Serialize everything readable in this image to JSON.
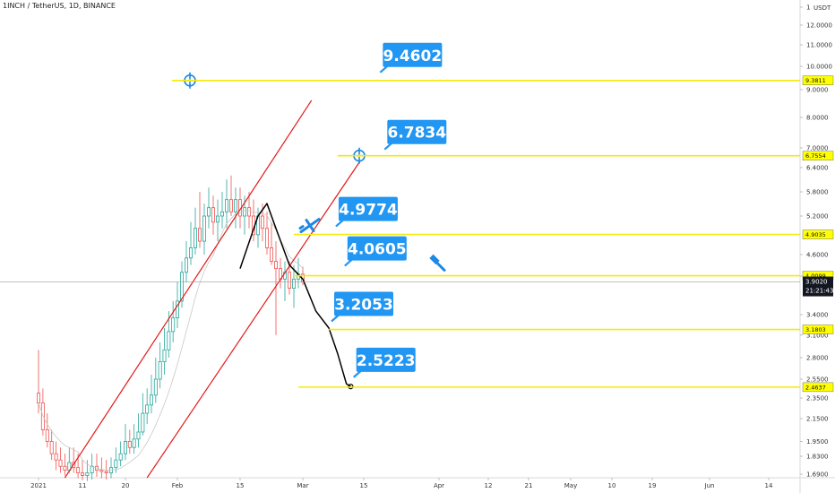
{
  "header": {
    "symbol_title": "1INCH / TetherUS, 1D, BINANCE"
  },
  "price_axis": {
    "currency": "USDT",
    "ticks": [
      "1",
      "12.0000",
      "11.0000",
      "10.0000",
      "9.0000",
      "8.0000",
      "7.0000",
      "6.4000",
      "5.8000",
      "5.2000",
      "4.6000",
      "4.0000",
      "3.4000",
      "3.1000",
      "2.8000",
      "2.5500",
      "2.3500",
      "2.1500",
      "1.9500",
      "1.8300",
      "1.6900"
    ],
    "current_price": "3.9020",
    "countdown": "21:21:43"
  },
  "time_axis": {
    "ticks": [
      "2021",
      "11",
      "20",
      "Feb",
      "15",
      "Mar",
      "15",
      "Apr",
      "12",
      "21",
      "May",
      "10",
      "19",
      "Jun",
      "14"
    ]
  },
  "levels": [
    {
      "label": "9.3811",
      "callout": "9.4602"
    },
    {
      "label": "6.7554",
      "callout": "6.7834"
    },
    {
      "label": "4.9035",
      "callout": "4.9774"
    },
    {
      "label": "4.0099",
      "callout": "4.0605"
    },
    {
      "label": "3.1803",
      "callout": "3.2053"
    },
    {
      "label": "2.4637",
      "callout": "2.5223"
    }
  ],
  "colors": {
    "level_line": "#f5e90f",
    "callout_bg": "#2196f3",
    "channel": "#e31b1b",
    "bull": "#26a69a",
    "bear": "#ef5350",
    "drawing": "#000000"
  },
  "chart_data": {
    "type": "candlestick",
    "title": "1INCH / TetherUS, 1D, BINANCE",
    "xlabel": "",
    "ylabel": "",
    "scale": "log",
    "ylim": [
      1.69,
      13.0
    ],
    "x_range": [
      "2021-01-01",
      "2021-06-20"
    ],
    "horizontal_levels": [
      9.3811,
      6.7554,
      4.9035,
      4.0099,
      3.1803,
      2.4637
    ],
    "price_callouts": [
      9.4602,
      6.7834,
      4.9774,
      4.0605,
      3.2053,
      2.5223
    ],
    "last_price": 3.902,
    "series": [
      {
        "x": [
          "2021-01-01",
          "2021-01-02",
          "2021-01-03",
          "2021-01-04",
          "2021-01-05",
          "2021-01-06",
          "2021-01-07",
          "2021-01-08",
          "2021-01-09",
          "2021-01-10",
          "2021-01-11",
          "2021-01-12",
          "2021-01-13",
          "2021-01-14",
          "2021-01-15",
          "2021-01-16",
          "2021-01-17",
          "2021-01-18",
          "2021-01-19",
          "2021-01-20",
          "2021-01-21",
          "2021-01-22",
          "2021-01-23",
          "2021-01-24",
          "2021-01-25",
          "2021-01-26",
          "2021-01-27",
          "2021-01-28",
          "2021-01-29",
          "2021-01-30",
          "2021-01-31",
          "2021-02-01",
          "2021-02-02",
          "2021-02-03",
          "2021-02-04",
          "2021-02-05",
          "2021-02-06",
          "2021-02-07",
          "2021-02-08",
          "2021-02-09",
          "2021-02-10",
          "2021-02-11",
          "2021-02-12",
          "2021-02-13",
          "2021-02-14",
          "2021-02-15",
          "2021-02-16",
          "2021-02-17",
          "2021-02-18",
          "2021-02-19",
          "2021-02-20",
          "2021-02-21",
          "2021-02-22",
          "2021-02-23",
          "2021-02-24",
          "2021-02-25",
          "2021-02-26",
          "2021-02-27",
          "2021-02-28",
          "2021-03-01"
        ],
        "open": [
          2.4,
          2.3,
          2.05,
          1.95,
          1.85,
          1.8,
          1.75,
          1.72,
          1.78,
          1.74,
          1.7,
          1.68,
          1.7,
          1.75,
          1.72,
          1.71,
          1.7,
          1.74,
          1.8,
          1.85,
          1.95,
          1.9,
          1.97,
          2.03,
          2.2,
          2.28,
          2.38,
          2.55,
          2.75,
          2.9,
          3.15,
          3.35,
          3.6,
          4.1,
          4.5,
          4.7,
          5.0,
          4.8,
          5.2,
          5.4,
          5.1,
          5.2,
          5.3,
          5.6,
          5.3,
          5.6,
          5.2,
          5.4,
          5.2,
          4.9,
          5.2,
          5.0,
          4.7,
          4.4,
          4.2,
          3.95,
          4.1,
          3.8,
          3.95,
          4.05
        ],
        "high": [
          2.9,
          2.45,
          2.2,
          2.05,
          1.95,
          1.9,
          1.85,
          1.9,
          1.9,
          1.85,
          1.8,
          1.8,
          1.85,
          1.85,
          1.82,
          1.8,
          1.82,
          1.9,
          1.95,
          2.1,
          2.05,
          2.1,
          2.2,
          2.4,
          2.45,
          2.6,
          2.8,
          3.0,
          3.2,
          3.45,
          3.6,
          3.9,
          4.4,
          4.8,
          5.1,
          5.4,
          5.8,
          5.5,
          5.9,
          5.7,
          5.6,
          5.8,
          6.1,
          6.2,
          5.9,
          5.9,
          5.7,
          5.8,
          5.6,
          5.4,
          5.5,
          5.3,
          5.1,
          4.8,
          4.5,
          4.4,
          4.4,
          4.3,
          4.5,
          4.25
        ],
        "low": [
          2.2,
          2.0,
          1.9,
          1.8,
          1.72,
          1.7,
          1.68,
          1.7,
          1.7,
          1.66,
          1.65,
          1.64,
          1.65,
          1.67,
          1.66,
          1.65,
          1.66,
          1.7,
          1.75,
          1.8,
          1.85,
          1.85,
          1.9,
          2.0,
          2.1,
          2.2,
          2.3,
          2.45,
          2.6,
          2.8,
          3.0,
          3.2,
          3.5,
          3.9,
          4.3,
          4.6,
          4.7,
          4.6,
          5.0,
          4.9,
          4.8,
          5.0,
          5.0,
          5.2,
          5.0,
          5.0,
          4.9,
          5.0,
          4.8,
          4.7,
          4.8,
          4.6,
          4.3,
          3.1,
          3.8,
          3.6,
          3.7,
          3.5,
          3.8,
          3.85
        ],
        "close": [
          2.3,
          2.05,
          1.95,
          1.85,
          1.8,
          1.75,
          1.72,
          1.78,
          1.74,
          1.7,
          1.68,
          1.7,
          1.75,
          1.72,
          1.71,
          1.7,
          1.74,
          1.8,
          1.85,
          1.95,
          1.9,
          1.97,
          2.03,
          2.2,
          2.28,
          2.38,
          2.55,
          2.75,
          2.9,
          3.15,
          3.35,
          3.6,
          4.1,
          4.5,
          4.7,
          5.0,
          4.8,
          5.2,
          5.4,
          5.1,
          5.2,
          5.3,
          5.6,
          5.3,
          5.6,
          5.2,
          5.4,
          5.2,
          4.9,
          5.2,
          5.0,
          4.7,
          4.4,
          4.2,
          3.95,
          4.1,
          3.8,
          3.95,
          4.05,
          3.9
        ]
      }
    ]
  }
}
